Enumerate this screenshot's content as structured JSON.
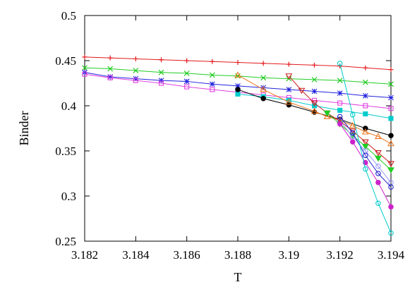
{
  "chart_data": {
    "type": "line",
    "xlabel": "T",
    "ylabel": "Binder",
    "xlim": [
      3.182,
      3.194
    ],
    "ylim": [
      0.25,
      0.5
    ],
    "xticks": [
      "3.182",
      "3.184",
      "3.186",
      "3.188",
      "3.19",
      "3.192",
      "3.194"
    ],
    "yticks": [
      "0.25",
      "0.3",
      "0.35",
      "0.4",
      "0.45",
      "0.5"
    ],
    "grid": false,
    "legend": "none",
    "series": [
      {
        "color": "#e41a1c",
        "marker": "plus",
        "x": [
          3.182,
          3.183,
          3.184,
          3.185,
          3.186,
          3.187,
          3.188,
          3.189,
          3.19,
          3.191,
          3.192,
          3.193,
          3.194
        ],
        "y": [
          0.454,
          0.453,
          0.452,
          0.451,
          0.45,
          0.449,
          0.448,
          0.447,
          0.446,
          0.445,
          0.444,
          0.442,
          0.44
        ]
      },
      {
        "color": "#22cc22",
        "marker": "cross",
        "x": [
          3.182,
          3.183,
          3.184,
          3.185,
          3.186,
          3.187,
          3.188,
          3.189,
          3.19,
          3.191,
          3.192,
          3.193,
          3.194
        ],
        "y": [
          0.442,
          0.441,
          0.439,
          0.437,
          0.436,
          0.434,
          0.433,
          0.431,
          0.43,
          0.429,
          0.428,
          0.426,
          0.424
        ]
      },
      {
        "color": "#2222dd",
        "marker": "star",
        "x": [
          3.182,
          3.183,
          3.184,
          3.185,
          3.186,
          3.187,
          3.188,
          3.189,
          3.19,
          3.191,
          3.192,
          3.193,
          3.194
        ],
        "y": [
          0.437,
          0.432,
          0.43,
          0.428,
          0.427,
          0.424,
          0.422,
          0.42,
          0.418,
          0.416,
          0.414,
          0.411,
          0.409
        ]
      },
      {
        "color": "#e040e0",
        "marker": "open-square",
        "x": [
          3.182,
          3.183,
          3.184,
          3.185,
          3.186,
          3.187,
          3.188,
          3.189,
          3.19,
          3.191,
          3.192,
          3.193,
          3.194
        ],
        "y": [
          0.435,
          0.431,
          0.428,
          0.425,
          0.421,
          0.418,
          0.415,
          0.412,
          0.409,
          0.406,
          0.403,
          0.4,
          0.397
        ]
      },
      {
        "color": "#00cccc",
        "marker": "filled-square",
        "x": [
          3.188,
          3.189,
          3.19,
          3.191,
          3.192,
          3.193,
          3.194
        ],
        "y": [
          0.413,
          0.41,
          0.406,
          0.4,
          0.395,
          0.391,
          0.386
        ]
      },
      {
        "color": "#000000",
        "marker": "filled-circle",
        "x": [
          3.188,
          3.189,
          3.19,
          3.191,
          3.192,
          3.193,
          3.194
        ],
        "y": [
          0.418,
          0.408,
          0.401,
          0.393,
          0.385,
          0.375,
          0.367
        ]
      },
      {
        "color": "#ee7722",
        "marker": "open-triangle",
        "x": [
          3.188,
          3.189,
          3.19,
          3.191,
          3.1915,
          3.192,
          3.1925,
          3.193,
          3.1935,
          3.194
        ],
        "y": [
          0.434,
          0.418,
          0.404,
          0.394,
          0.388,
          0.384,
          0.378,
          0.371,
          0.366,
          0.358
        ]
      },
      {
        "color": "#cc2222",
        "marker": "open-triangle-down",
        "x": [
          3.19,
          3.1905,
          3.191,
          3.1915,
          3.192,
          3.1925,
          3.193,
          3.1935,
          3.194
        ],
        "y": [
          0.433,
          0.417,
          0.403,
          0.392,
          0.383,
          0.372,
          0.36,
          0.348,
          0.336
        ]
      },
      {
        "color": "#22cc22",
        "marker": "filled-triangle-down",
        "x": [
          3.1915,
          3.192,
          3.1925,
          3.193,
          3.1935,
          3.194
        ],
        "y": [
          0.392,
          0.38,
          0.367,
          0.355,
          0.342,
          0.329
        ]
      },
      {
        "color": "#9999ff",
        "marker": "open-circle",
        "x": [
          3.192,
          3.1925,
          3.193,
          3.1935,
          3.194
        ],
        "y": [
          0.383,
          0.366,
          0.35,
          0.333,
          0.315
        ]
      },
      {
        "color": "#cc22cc",
        "marker": "filled-circle",
        "x": [
          3.192,
          3.1925,
          3.193,
          3.1935,
          3.194
        ],
        "y": [
          0.38,
          0.36,
          0.337,
          0.315,
          0.288
        ]
      },
      {
        "color": "#2222cc",
        "marker": "open-circle",
        "x": [
          3.192,
          3.1925,
          3.193,
          3.1935,
          3.194
        ],
        "y": [
          0.388,
          0.37,
          0.345,
          0.325,
          0.31
        ]
      },
      {
        "color": "#00cccc",
        "marker": "open-circle",
        "x": [
          3.192,
          3.1925,
          3.193,
          3.1935,
          3.194
        ],
        "y": [
          0.447,
          0.39,
          0.33,
          0.292,
          0.259
        ]
      }
    ]
  }
}
